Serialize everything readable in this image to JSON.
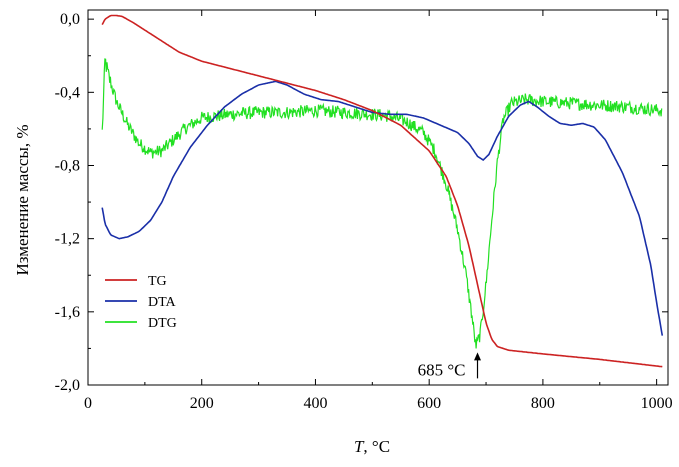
{
  "chart_data": {
    "type": "line",
    "title": "",
    "xlabel_var": "T",
    "xlabel_unit": ", °C",
    "ylabel": "Изменение массы, %",
    "xlim": [
      0,
      1020
    ],
    "ylim": [
      -2.0,
      0.05
    ],
    "x_ticks": [
      0,
      200,
      400,
      600,
      800,
      1000
    ],
    "x_tick_labels": [
      "0",
      "200",
      "400",
      "600",
      "800",
      "1000"
    ],
    "y_ticks": [
      0.0,
      -0.4,
      -0.8,
      -1.2,
      -1.6,
      -2.0
    ],
    "y_tick_labels": [
      "0,0",
      "-0,4",
      "-0,8",
      "-1,2",
      "-1,6",
      "-2,0"
    ],
    "grid": false,
    "legend_position": "lower-left",
    "series": [
      {
        "name": "TG",
        "color": "#cc2222",
        "points": [
          [
            25,
            -0.03
          ],
          [
            30,
            0.0
          ],
          [
            40,
            0.02
          ],
          [
            50,
            0.02
          ],
          [
            60,
            0.015
          ],
          [
            80,
            -0.02
          ],
          [
            100,
            -0.06
          ],
          [
            130,
            -0.12
          ],
          [
            160,
            -0.18
          ],
          [
            200,
            -0.23
          ],
          [
            250,
            -0.27
          ],
          [
            300,
            -0.31
          ],
          [
            350,
            -0.35
          ],
          [
            400,
            -0.39
          ],
          [
            450,
            -0.44
          ],
          [
            500,
            -0.5
          ],
          [
            550,
            -0.58
          ],
          [
            600,
            -0.72
          ],
          [
            630,
            -0.86
          ],
          [
            650,
            -1.02
          ],
          [
            670,
            -1.24
          ],
          [
            685,
            -1.45
          ],
          [
            700,
            -1.66
          ],
          [
            710,
            -1.75
          ],
          [
            720,
            -1.79
          ],
          [
            740,
            -1.81
          ],
          [
            800,
            -1.83
          ],
          [
            900,
            -1.86
          ],
          [
            1010,
            -1.9
          ]
        ]
      },
      {
        "name": "DTA",
        "color": "#1a2fa8",
        "points": [
          [
            25,
            -1.03
          ],
          [
            30,
            -1.12
          ],
          [
            40,
            -1.18
          ],
          [
            55,
            -1.2
          ],
          [
            70,
            -1.19
          ],
          [
            90,
            -1.16
          ],
          [
            110,
            -1.1
          ],
          [
            130,
            -1.0
          ],
          [
            150,
            -0.86
          ],
          [
            180,
            -0.7
          ],
          [
            210,
            -0.58
          ],
          [
            240,
            -0.48
          ],
          [
            270,
            -0.41
          ],
          [
            300,
            -0.36
          ],
          [
            330,
            -0.34
          ],
          [
            350,
            -0.36
          ],
          [
            380,
            -0.41
          ],
          [
            410,
            -0.44
          ],
          [
            440,
            -0.45
          ],
          [
            470,
            -0.48
          ],
          [
            500,
            -0.51
          ],
          [
            530,
            -0.52
          ],
          [
            560,
            -0.52
          ],
          [
            590,
            -0.54
          ],
          [
            620,
            -0.58
          ],
          [
            650,
            -0.62
          ],
          [
            670,
            -0.68
          ],
          [
            685,
            -0.75
          ],
          [
            695,
            -0.77
          ],
          [
            705,
            -0.74
          ],
          [
            720,
            -0.64
          ],
          [
            740,
            -0.53
          ],
          [
            760,
            -0.47
          ],
          [
            775,
            -0.45
          ],
          [
            790,
            -0.48
          ],
          [
            810,
            -0.53
          ],
          [
            830,
            -0.57
          ],
          [
            850,
            -0.58
          ],
          [
            870,
            -0.57
          ],
          [
            890,
            -0.59
          ],
          [
            910,
            -0.66
          ],
          [
            940,
            -0.84
          ],
          [
            970,
            -1.08
          ],
          [
            990,
            -1.35
          ],
          [
            1000,
            -1.55
          ],
          [
            1010,
            -1.73
          ]
        ]
      },
      {
        "name": "DTG",
        "color": "#22e022",
        "noise": true,
        "points": [
          [
            25,
            -0.62
          ],
          [
            30,
            -0.22
          ],
          [
            35,
            -0.3
          ],
          [
            50,
            -0.45
          ],
          [
            70,
            -0.58
          ],
          [
            90,
            -0.68
          ],
          [
            110,
            -0.73
          ],
          [
            130,
            -0.72
          ],
          [
            150,
            -0.66
          ],
          [
            170,
            -0.6
          ],
          [
            200,
            -0.54
          ],
          [
            250,
            -0.52
          ],
          [
            300,
            -0.51
          ],
          [
            350,
            -0.51
          ],
          [
            400,
            -0.5
          ],
          [
            450,
            -0.51
          ],
          [
            500,
            -0.52
          ],
          [
            530,
            -0.53
          ],
          [
            560,
            -0.56
          ],
          [
            590,
            -0.62
          ],
          [
            610,
            -0.72
          ],
          [
            630,
            -0.9
          ],
          [
            650,
            -1.15
          ],
          [
            665,
            -1.4
          ],
          [
            675,
            -1.62
          ],
          [
            682,
            -1.79
          ],
          [
            690,
            -1.72
          ],
          [
            700,
            -1.45
          ],
          [
            710,
            -1.1
          ],
          [
            720,
            -0.78
          ],
          [
            730,
            -0.55
          ],
          [
            745,
            -0.46
          ],
          [
            770,
            -0.44
          ],
          [
            800,
            -0.45
          ],
          [
            850,
            -0.46
          ],
          [
            900,
            -0.47
          ],
          [
            950,
            -0.48
          ],
          [
            1010,
            -0.5
          ]
        ]
      }
    ],
    "annotation": {
      "text": "685 °C",
      "x": 685,
      "y": -1.92
    }
  }
}
